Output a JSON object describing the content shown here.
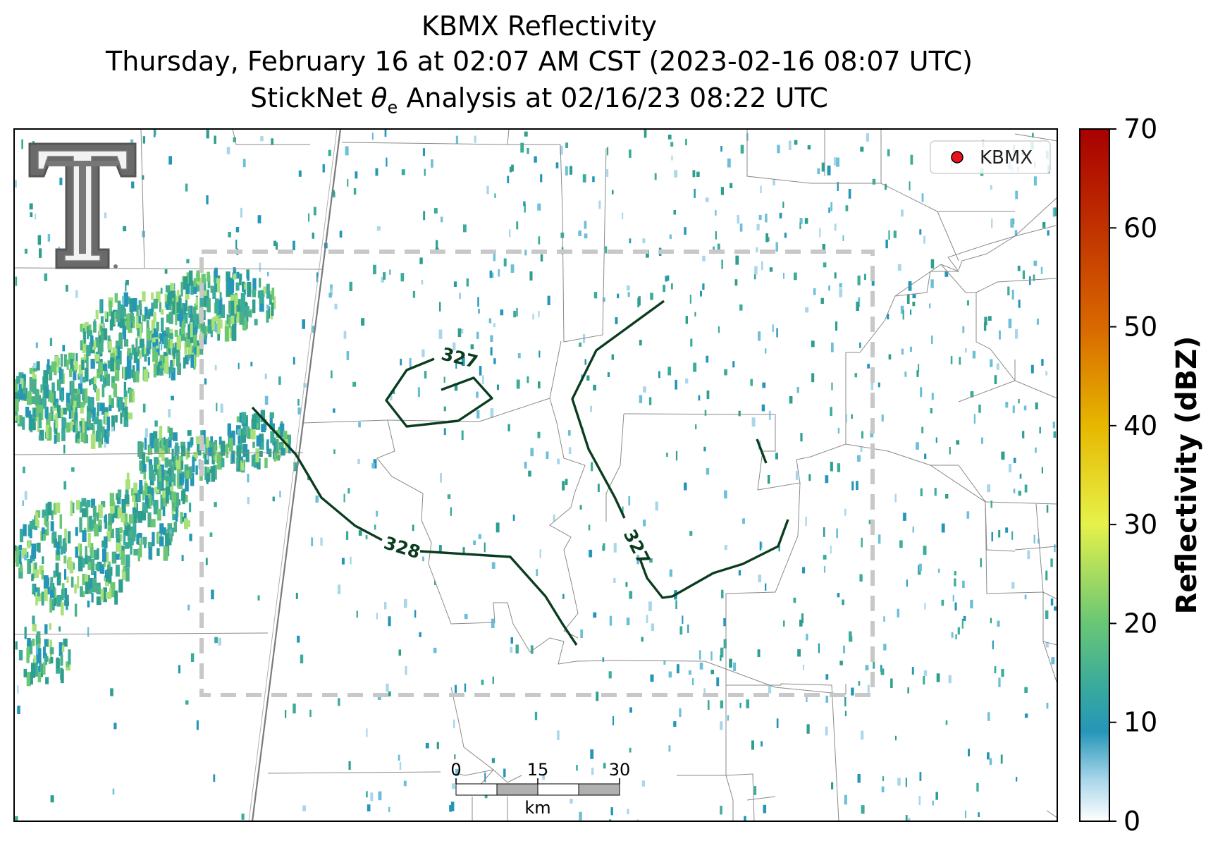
{
  "title": {
    "line1": "KBMX Reflectivity",
    "line2": "Thursday, February 16 at 02:07 AM CST (2023-02-16 08:07 UTC)",
    "line3_prefix": "StickNet ",
    "line3_symbol": "θ",
    "line3_subscript": "e",
    "line3_suffix": " Analysis at 02/16/23 08:22 UTC"
  },
  "legend": {
    "label": "KBMX",
    "marker_color": "#e8141c"
  },
  "colorbar": {
    "label": "Reflectivity (dBZ)",
    "ticks": [
      "0",
      "10",
      "20",
      "30",
      "40",
      "50",
      "60",
      "70"
    ],
    "colors": [
      "#ffffff",
      "#2596b8",
      "#6cc774",
      "#e6f24a",
      "#e6b800",
      "#d96a00",
      "#b52000",
      "#a80000"
    ]
  },
  "contours": [
    {
      "label": "327",
      "color": "#0a3d1f"
    },
    {
      "label": "328",
      "color": "#0a3d1f"
    },
    {
      "label": "327",
      "color": "#0a3d1f"
    }
  ],
  "scale_bar": {
    "ticks": [
      "0",
      "15",
      "30"
    ],
    "unit": "km"
  },
  "logo": {
    "name": "Texas Tech Double T",
    "color": "#5a5a5a"
  }
}
